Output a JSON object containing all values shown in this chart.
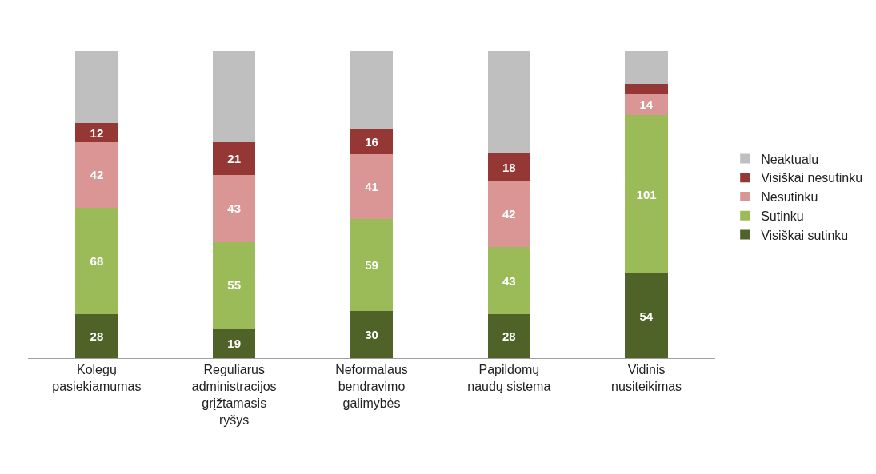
{
  "chart_data": {
    "type": "bar",
    "stacked": true,
    "legend": "right",
    "categories": [
      "Kolegų pasiekiamumas",
      "Reguliarus administracijos grįžtamasis ryšys",
      "Neformalaus bendravimo galimybės",
      "Papildomų naudų sistema",
      "Vidinis nusiteikimas"
    ],
    "series": [
      {
        "name": "Visiškai sutinku",
        "color": "#4f6228",
        "values": [
          28,
          19,
          30,
          28,
          54
        ],
        "value_labels": [
          "28",
          "19",
          "30",
          "28",
          "54"
        ]
      },
      {
        "name": "Sutinku",
        "color": "#9bbb59",
        "values": [
          68,
          55,
          59,
          43,
          101
        ],
        "value_labels": [
          "68",
          "55",
          "59",
          "43",
          "101"
        ]
      },
      {
        "name": "Nesutinku",
        "color": "#d99694",
        "values": [
          42,
          43,
          41,
          42,
          14
        ],
        "value_labels": [
          "42",
          "43",
          "41",
          "42",
          "14"
        ]
      },
      {
        "name": "Visiškai nesutinku",
        "color": "#953735",
        "values": [
          12,
          21,
          16,
          18,
          6
        ],
        "value_labels": [
          "12",
          "21",
          "16",
          "18",
          null
        ]
      },
      {
        "name": "Neaktualu",
        "color": "#bfbfbf",
        "values": [
          46,
          58,
          50,
          65,
          21
        ],
        "value_labels": [
          null,
          null,
          null,
          null,
          null
        ]
      }
    ]
  }
}
